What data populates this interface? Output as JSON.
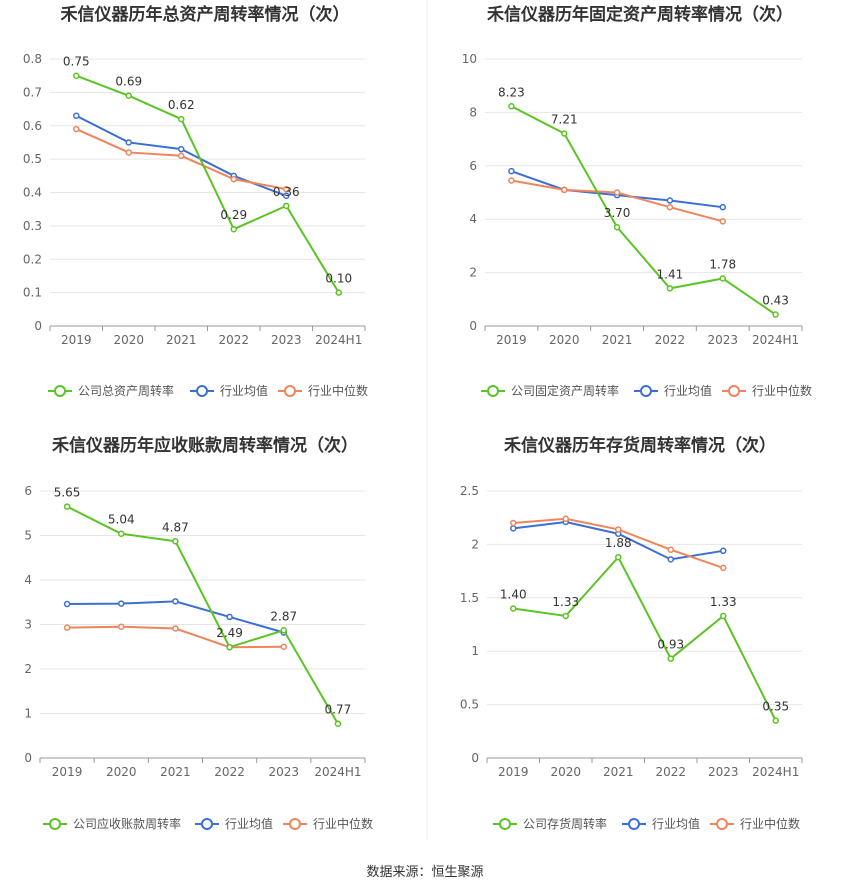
{
  "source": "数据来源：恒生聚源",
  "colors": {
    "company": "#5bc424",
    "average": "#3b6fd6",
    "median": "#f0845a",
    "grid": "#e6e6e6",
    "axis": "#999999",
    "divider": "#eeeeee"
  },
  "chart_data": [
    {
      "type": "line",
      "title": "禾信仪器历年总资产周转率情况（次）",
      "categories": [
        "2019",
        "2020",
        "2021",
        "2022",
        "2023",
        "2024H1"
      ],
      "ylim": [
        0,
        0.8
      ],
      "yticks": [
        "0",
        "0.1",
        "0.2",
        "0.3",
        "0.4",
        "0.5",
        "0.6",
        "0.7",
        "0.8"
      ],
      "grid": true,
      "legend_position": "bottom",
      "series": [
        {
          "name": "公司总资产周转率",
          "role": "company",
          "values": [
            0.75,
            0.69,
            0.62,
            0.29,
            0.36,
            0.1
          ],
          "labels": [
            "0.75",
            "0.69",
            "0.62",
            "0.29",
            "0.36",
            "0.10"
          ]
        },
        {
          "name": "行业均值",
          "role": "average",
          "values": [
            0.63,
            0.55,
            0.53,
            0.45,
            0.39,
            null
          ]
        },
        {
          "name": "行业中位数",
          "role": "median",
          "values": [
            0.59,
            0.52,
            0.51,
            0.44,
            0.41,
            null
          ]
        }
      ]
    },
    {
      "type": "line",
      "title": "禾信仪器历年固定资产周转率情况（次）",
      "categories": [
        "2019",
        "2020",
        "2021",
        "2022",
        "2023",
        "2024H1"
      ],
      "ylim": [
        0,
        10
      ],
      "yticks": [
        "0",
        "2",
        "4",
        "6",
        "8",
        "10"
      ],
      "grid": true,
      "legend_position": "bottom",
      "series": [
        {
          "name": "公司固定资产周转率",
          "role": "company",
          "values": [
            8.23,
            7.21,
            3.7,
            1.41,
            1.78,
            0.43
          ],
          "labels": [
            "8.23",
            "7.21",
            "3.70",
            "1.41",
            "1.78",
            "0.43"
          ]
        },
        {
          "name": "行业均值",
          "role": "average",
          "values": [
            5.8,
            5.1,
            4.9,
            4.7,
            4.45,
            null
          ]
        },
        {
          "name": "行业中位数",
          "role": "median",
          "values": [
            5.45,
            5.1,
            5.0,
            4.45,
            3.92,
            null
          ]
        }
      ]
    },
    {
      "type": "line",
      "title": "禾信仪器历年应收账款周转率情况（次）",
      "categories": [
        "2019",
        "2020",
        "2021",
        "2022",
        "2023",
        "2024H1"
      ],
      "ylim": [
        0,
        6
      ],
      "yticks": [
        "0",
        "1",
        "2",
        "3",
        "4",
        "5",
        "6"
      ],
      "grid": true,
      "legend_position": "bottom",
      "series": [
        {
          "name": "公司应收账款周转率",
          "role": "company",
          "values": [
            5.65,
            5.04,
            4.87,
            2.49,
            2.87,
            0.77
          ],
          "labels": [
            "5.65",
            "5.04",
            "4.87",
            "2.49",
            "2.87",
            "0.77"
          ]
        },
        {
          "name": "行业均值",
          "role": "average",
          "values": [
            3.46,
            3.47,
            3.52,
            3.17,
            2.82,
            null
          ]
        },
        {
          "name": "行业中位数",
          "role": "median",
          "values": [
            2.93,
            2.95,
            2.91,
            2.49,
            2.5,
            null
          ]
        }
      ]
    },
    {
      "type": "line",
      "title": "禾信仪器历年存货周转率情况（次）",
      "categories": [
        "2019",
        "2020",
        "2021",
        "2022",
        "2023",
        "2024H1"
      ],
      "ylim": [
        0,
        2.5
      ],
      "yticks": [
        "0",
        "0.5",
        "1",
        "1.5",
        "2",
        "2.5"
      ],
      "grid": true,
      "legend_position": "bottom",
      "series": [
        {
          "name": "公司存货周转率",
          "role": "company",
          "values": [
            1.4,
            1.33,
            1.88,
            0.93,
            1.33,
            0.35
          ],
          "labels": [
            "1.40",
            "1.33",
            "1.88",
            "0.93",
            "1.33",
            "0.35"
          ]
        },
        {
          "name": "行业均值",
          "role": "average",
          "values": [
            2.15,
            2.21,
            2.1,
            1.86,
            1.94,
            null
          ]
        },
        {
          "name": "行业中位数",
          "role": "median",
          "values": [
            2.2,
            2.24,
            2.14,
            1.95,
            1.78,
            null
          ]
        }
      ]
    }
  ]
}
